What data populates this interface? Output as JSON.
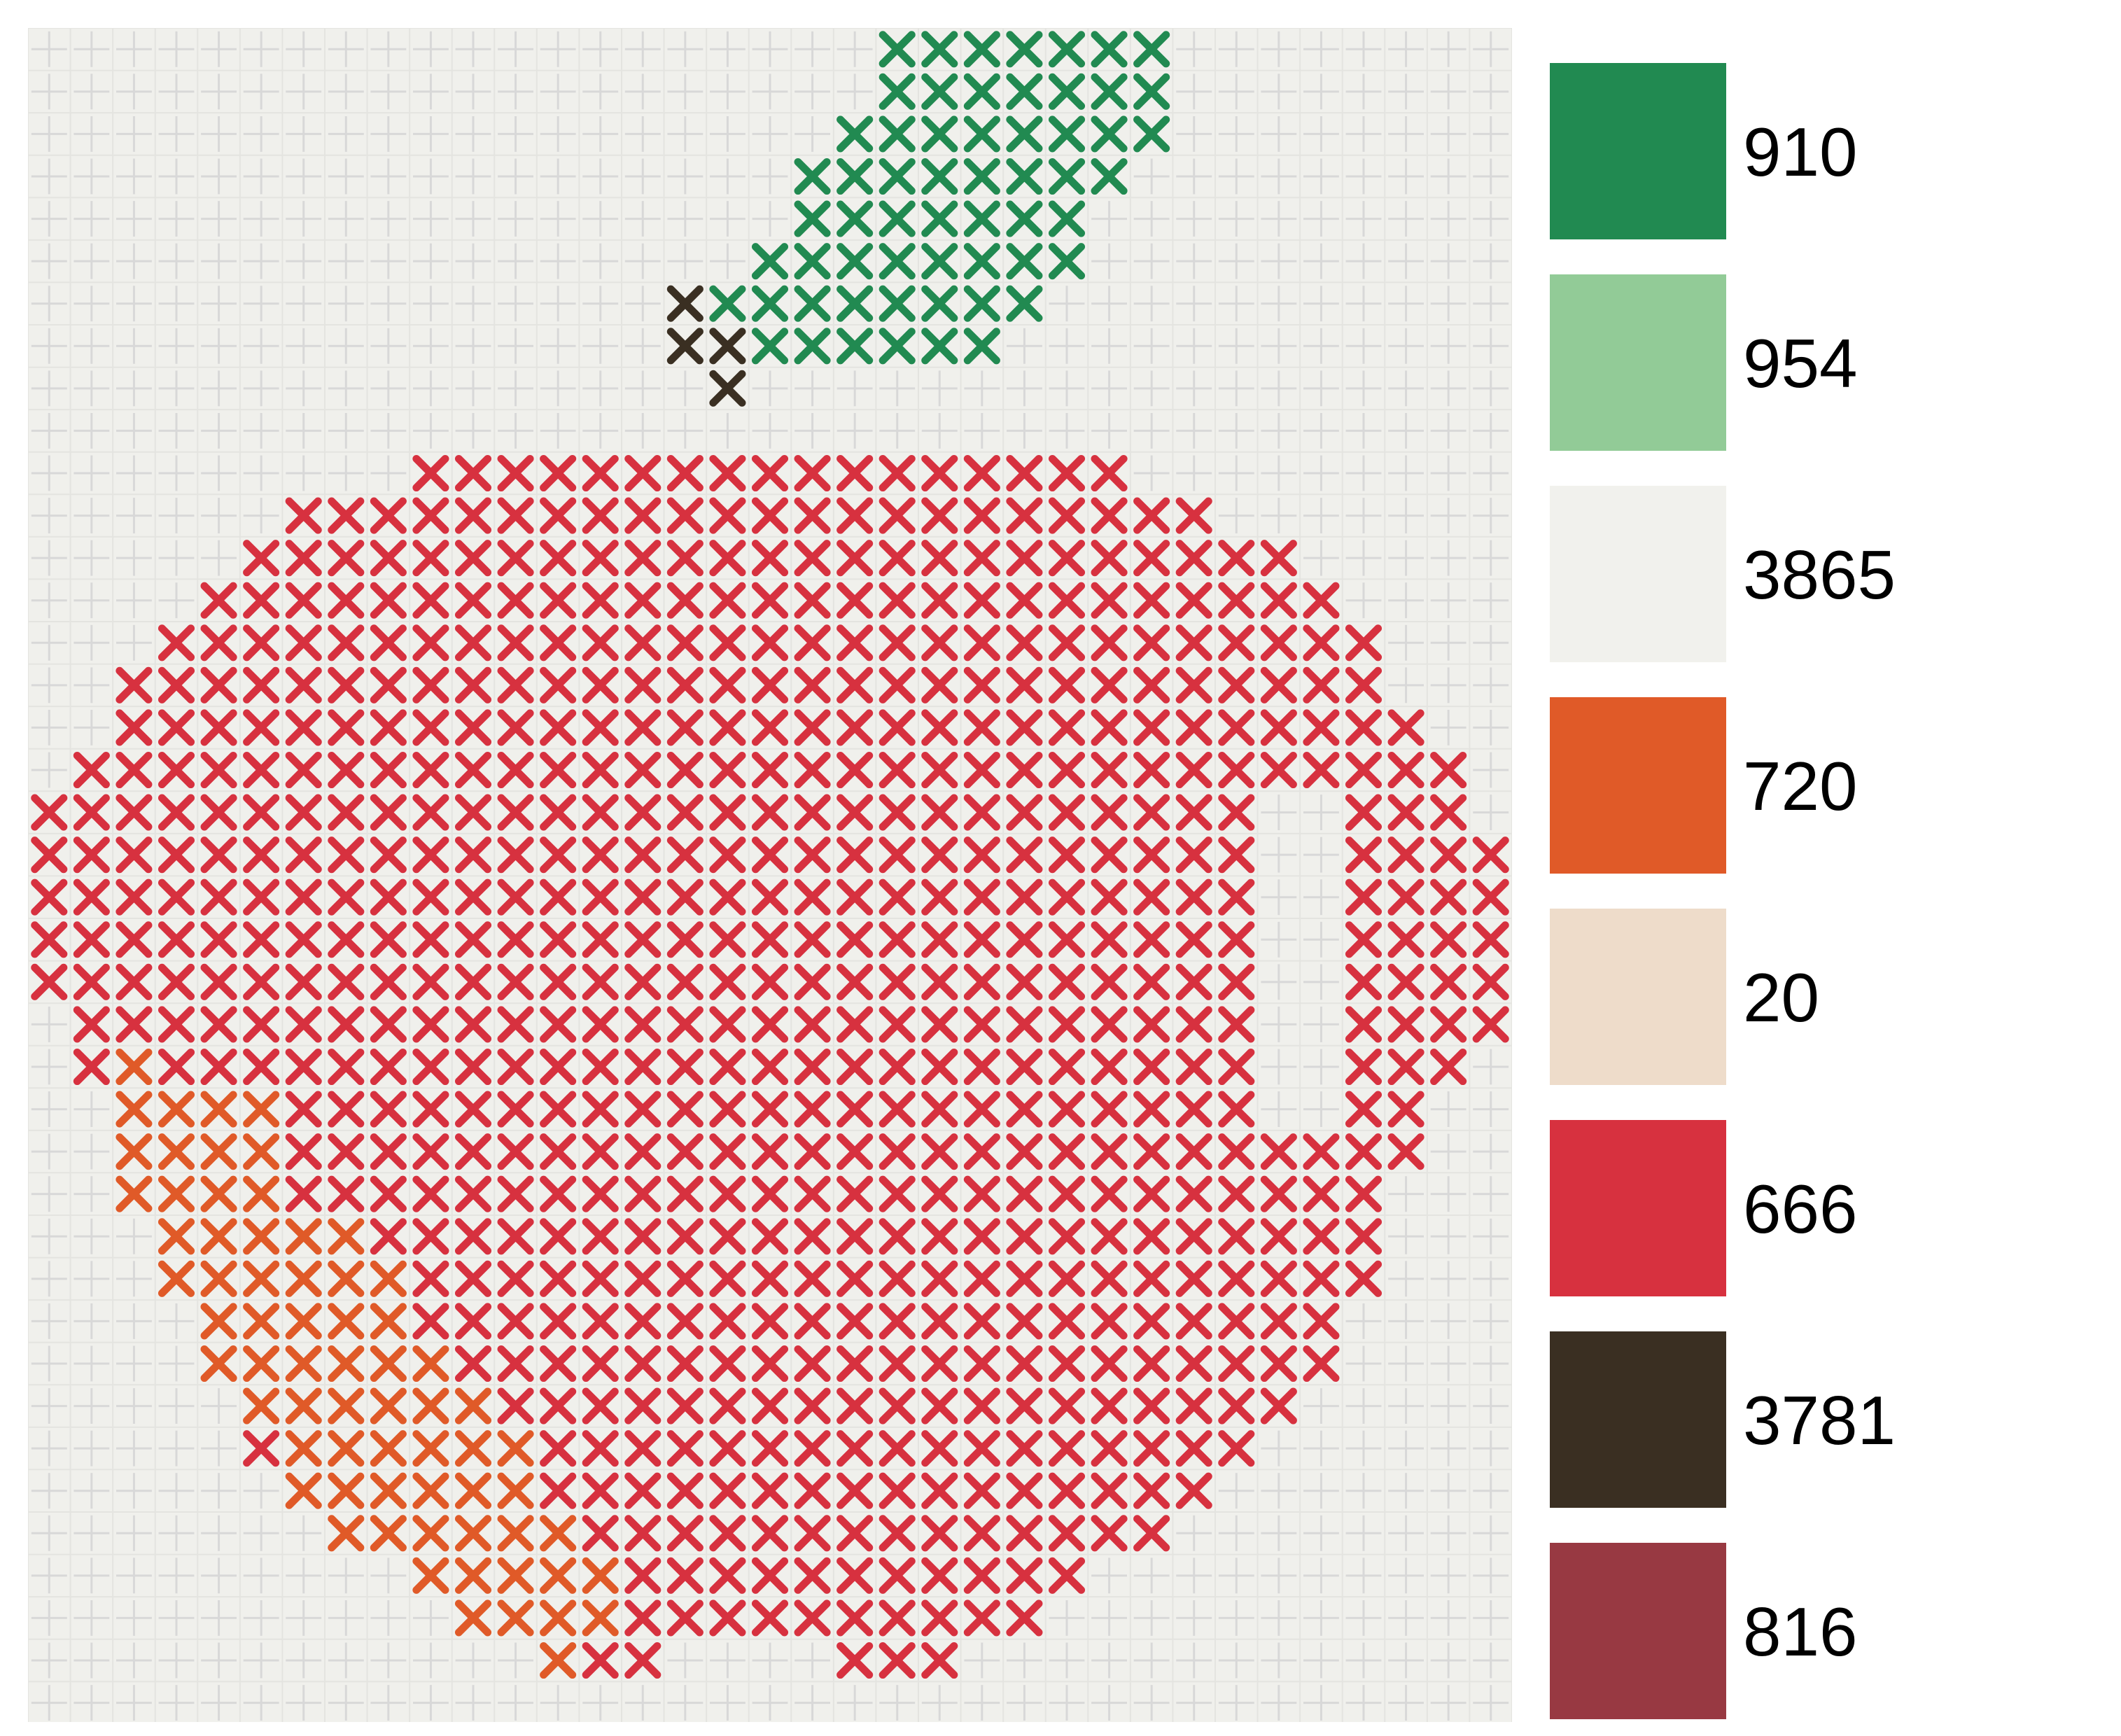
{
  "pattern": {
    "background_color": "#F0F0EC",
    "grid_line_color": "#D8D8D8",
    "cell_gap_color": "#F4F4F0",
    "grid": {
      "columns": 35,
      "rows": 40
    },
    "stitch_symbol": "cross-stitch-x-icon",
    "regions": [
      {
        "name": "apple-body",
        "thread_code": "666",
        "color": "#D7313F",
        "shape": "rounded-body"
      },
      {
        "name": "apple-highlight",
        "thread_code": "720",
        "color": "#E05A28",
        "shape": "lower-left-patch"
      },
      {
        "name": "leaf",
        "thread_code": "910",
        "color": "#218A51",
        "shape": "diagonal-leaf"
      },
      {
        "name": "stem",
        "thread_code": "3781",
        "color": "#3A2F22",
        "shape": "small-stem"
      }
    ]
  },
  "legend": {
    "items": [
      {
        "code": "910",
        "color": "#218A51"
      },
      {
        "code": "954",
        "color": "#92CB97"
      },
      {
        "code": "3865",
        "color": "#F1F1ED"
      },
      {
        "code": "720",
        "color": "#E05A28"
      },
      {
        "code": "20",
        "color": "#EEDCCA"
      },
      {
        "code": "666",
        "color": "#D7313F"
      },
      {
        "code": "3781",
        "color": "#3A2F22"
      },
      {
        "code": "816",
        "color": "#983942"
      }
    ]
  }
}
